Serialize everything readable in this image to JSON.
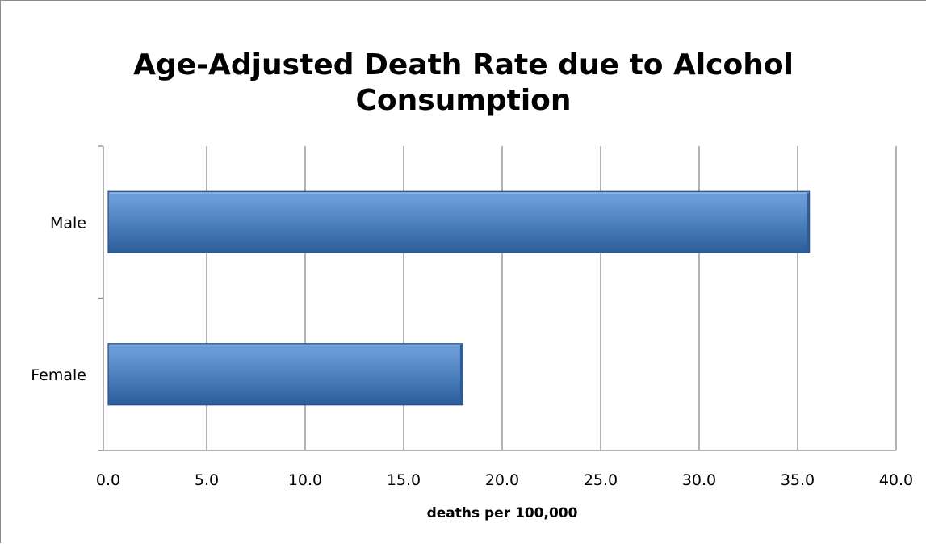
{
  "chart_data": {
    "type": "bar",
    "orientation": "horizontal",
    "title": "Age-Adjusted Death Rate due to Alcohol Consumption",
    "title_lines": [
      "Age-Adjusted Death Rate due to Alcohol",
      "Consumption"
    ],
    "xlabel": "deaths per 100,000",
    "ylabel": "",
    "categories": [
      "Male",
      "Female"
    ],
    "values": [
      35.6,
      18.0
    ],
    "xlim": [
      0,
      40
    ],
    "xticks": [
      0,
      5,
      10,
      15,
      20,
      25,
      30,
      35,
      40
    ],
    "xtick_labels": [
      "0.0",
      "5.0",
      "10.0",
      "15.0",
      "20.0",
      "25.0",
      "30.0",
      "35.0",
      "40.0"
    ],
    "grid": "vertical",
    "legend": "none",
    "colors": {
      "bar_fill": "#4a7ebb",
      "bar_light": "#6b9bd6",
      "bar_dark": "#2c5d9a",
      "bar_border": "#2b5286",
      "gridline": "#8c8c8c",
      "axis": "#8c8c8c"
    }
  }
}
